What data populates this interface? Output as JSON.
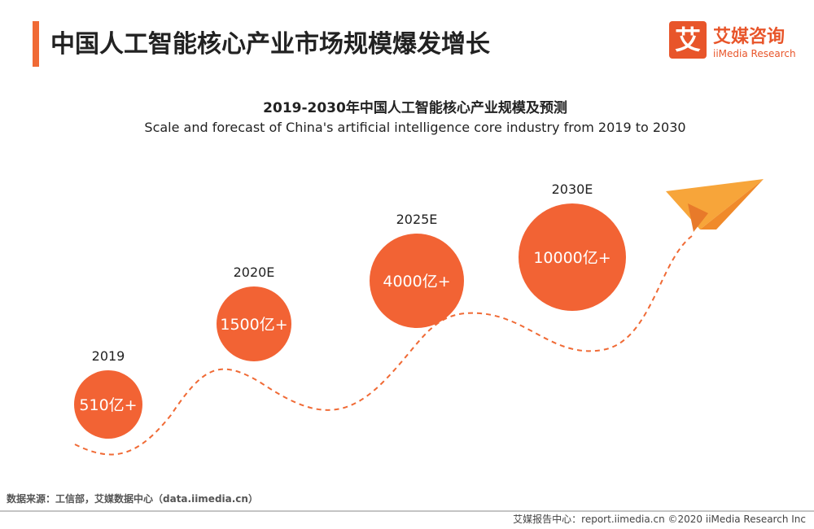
{
  "header": {
    "title": "中国人工智能核心产业市场规模爆发增长",
    "logo_mark": "艾",
    "logo_cn": "艾媒咨询",
    "logo_en": "iiMedia Research"
  },
  "figure": {
    "title": "2019-2030年中国人工智能核心产业规模及预测",
    "subtitle": "Scale and forecast of China's artificial intelligence core industry from 2019 to 2030",
    "milestones": [
      {
        "year": "2019",
        "label": "510亿+"
      },
      {
        "year": "2020E",
        "label": "1500亿+"
      },
      {
        "year": "2025E",
        "label": "4000亿+"
      },
      {
        "year": "2030E",
        "label": "10000亿+"
      }
    ]
  },
  "footer": {
    "source": "数据来源：工信部，艾媒数据中心（data.iimedia.cn）",
    "credit": "艾媒报告中心：report.iimedia.cn  ©2020  iiMedia Research  Inc"
  }
}
